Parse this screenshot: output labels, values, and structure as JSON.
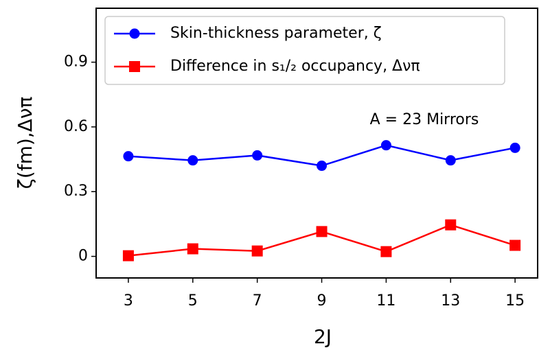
{
  "chart_data": {
    "type": "line",
    "x": [
      3,
      5,
      7,
      9,
      11,
      13,
      15
    ],
    "series": [
      {
        "name": "Skin-thickness parameter, ζ",
        "color": "#0000ff",
        "marker": "circle",
        "values": [
          0.464,
          0.445,
          0.468,
          0.42,
          0.515,
          0.445,
          0.503
        ]
      },
      {
        "name": "Difference in s₁/₂ occupancy, Δνπ",
        "color": "#ff0000",
        "marker": "square",
        "values": [
          0.003,
          0.035,
          0.025,
          0.115,
          0.022,
          0.146,
          0.051
        ]
      }
    ],
    "xlabel": "2J",
    "ylabel": "ζ(fm),Δνπ",
    "annotation": "A = 23 Mirrors",
    "xlim": [
      2,
      15.7
    ],
    "xticks": [
      3,
      5,
      7,
      9,
      11,
      13,
      15
    ],
    "ylim": [
      -0.1,
      1.15
    ],
    "yticks": [
      0,
      0.3,
      0.6,
      0.9
    ],
    "legend": "upper left"
  }
}
